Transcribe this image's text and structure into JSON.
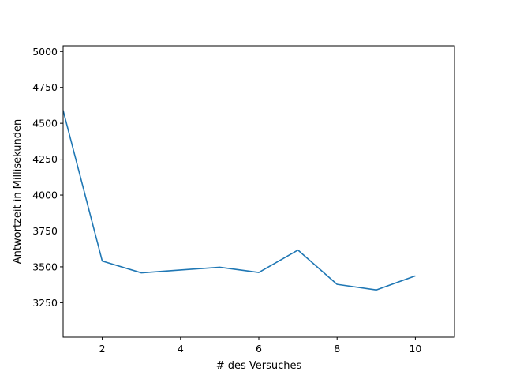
{
  "chart_data": {
    "type": "line",
    "title": "",
    "xlabel": "# des Versuches",
    "ylabel": "Antwortzeit in Millisekunden",
    "xlim": [
      1,
      11
    ],
    "ylim": [
      3010,
      5040
    ],
    "xticks": [
      2,
      4,
      6,
      8,
      10
    ],
    "yticks": [
      3250,
      3500,
      3750,
      4000,
      4250,
      4500,
      4750,
      5000
    ],
    "x_tick_labels": [
      "2",
      "4",
      "6",
      "8",
      "10"
    ],
    "y_tick_labels": [
      "3250",
      "3500",
      "3750",
      "4000",
      "4250",
      "4500",
      "4750",
      "5000"
    ],
    "grid": false,
    "legend": "none",
    "series": [
      {
        "color": "#1f77b4",
        "x": [
          1,
          2,
          3,
          4,
          5,
          6,
          7,
          8,
          9,
          10
        ],
        "y": [
          4590,
          3540,
          3458,
          3478,
          3497,
          3461,
          3617,
          3378,
          3339,
          3437
        ]
      }
    ]
  }
}
